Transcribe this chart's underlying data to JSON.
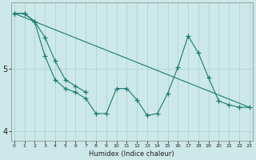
{
  "xlabel": "Humidex (Indice chaleur)",
  "ylim": [
    3.85,
    6.05
  ],
  "yticks": [
    4,
    5
  ],
  "ytick_labels": [
    "4",
    "5"
  ],
  "xticks": [
    0,
    1,
    2,
    3,
    4,
    5,
    6,
    7,
    8,
    9,
    10,
    11,
    12,
    13,
    14,
    15,
    16,
    17,
    18,
    19,
    20,
    21,
    22,
    23
  ],
  "line_color": "#1a7a6e",
  "bg_color": "#cce8e8",
  "grid_color": "#aacfcf",
  "straight_line": {
    "x": [
      0,
      23
    ],
    "y": [
      5.88,
      4.38
    ]
  },
  "zigzag_line": {
    "x": [
      0,
      1,
      2,
      3,
      4,
      5,
      6,
      7,
      8,
      9,
      10,
      11,
      12,
      13,
      14,
      15,
      16,
      17,
      18,
      19,
      20,
      21,
      22,
      23
    ],
    "y": [
      5.88,
      5.88,
      5.75,
      5.2,
      4.82,
      4.68,
      4.62,
      4.52,
      4.28,
      4.28,
      4.68,
      4.68,
      4.5,
      4.25,
      4.28,
      4.6,
      5.02,
      5.52,
      5.25,
      4.85,
      4.48,
      4.42,
      4.38,
      4.38
    ]
  },
  "short_line": {
    "x": [
      0,
      1,
      2,
      3,
      4,
      5,
      6,
      7
    ],
    "y": [
      5.88,
      5.88,
      5.75,
      5.5,
      5.12,
      4.82,
      4.72,
      4.62
    ]
  }
}
